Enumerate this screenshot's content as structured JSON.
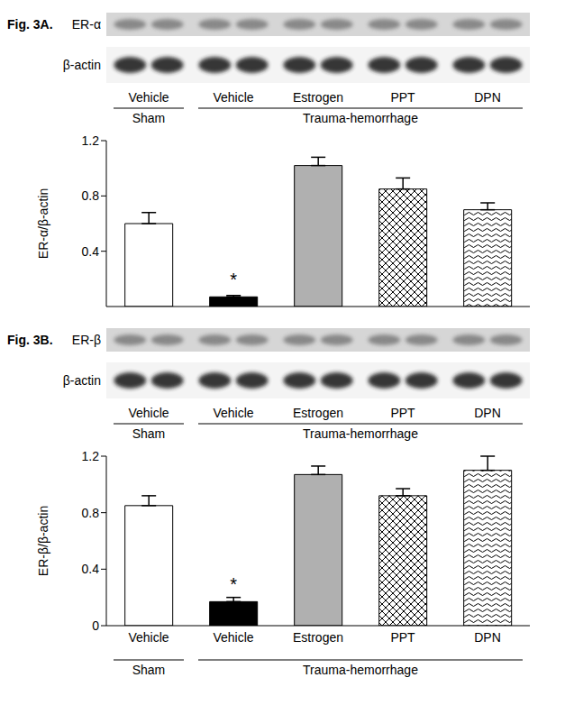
{
  "chart_data": [
    {
      "type": "bar",
      "panel_label": "Fig. 3A.",
      "blot_labels": [
        "ER-α",
        "β-actin"
      ],
      "y_label": "ER-α/β-actin",
      "categories": [
        "Vehicle",
        "Vehicle",
        "Estrogen",
        "PPT",
        "DPN"
      ],
      "groups": [
        {
          "label": "Sham",
          "size": 1
        },
        {
          "label": "Trauma-hemorrhage",
          "size": 4
        }
      ],
      "values": [
        0.6,
        0.07,
        1.02,
        0.85,
        0.7
      ],
      "errors": [
        0.08,
        0.01,
        0.06,
        0.08,
        0.05
      ],
      "annotations": [
        null,
        "*",
        null,
        null,
        null
      ],
      "colors": [
        "#ffffff",
        "#000000",
        "#b0b0b0",
        "#ffffff",
        "#ffffff"
      ],
      "ylim": [
        0,
        1.2
      ],
      "yticks": [
        0.4,
        0.8,
        1.2
      ],
      "tick_labels": "y"
    },
    {
      "type": "bar",
      "panel_label": "Fig. 3B.",
      "blot_labels": [
        "ER-β",
        "β-actin"
      ],
      "y_label": "ER-β/β-actin",
      "categories": [
        "Vehicle",
        "Vehicle",
        "Estrogen",
        "PPT",
        "DPN"
      ],
      "groups": [
        {
          "label": "Sham",
          "size": 1
        },
        {
          "label": "Trauma-hemorrhage",
          "size": 4
        }
      ],
      "values": [
        0.85,
        0.17,
        1.07,
        0.92,
        1.1
      ],
      "errors": [
        0.07,
        0.03,
        0.06,
        0.05,
        0.1
      ],
      "annotations": [
        null,
        "*",
        null,
        null,
        null
      ],
      "colors": [
        "#ffffff",
        "#000000",
        "#b0b0b0",
        "#ffffff",
        "#ffffff"
      ],
      "ylim": [
        0,
        1.2
      ],
      "yticks": [
        0,
        0.4,
        0.8,
        1.2
      ]
    }
  ]
}
